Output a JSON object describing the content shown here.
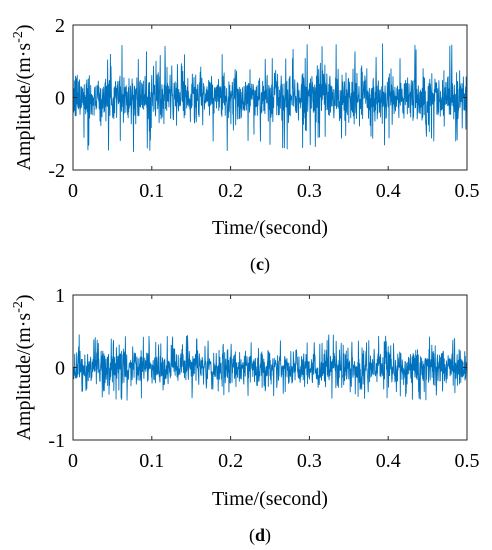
{
  "chart_data": [
    {
      "type": "line",
      "caption_letter": "c",
      "xlabel": "Time/(second)",
      "ylabel": "Amplitude/(m·s",
      "ylabel_sup": "-2",
      "ylabel_close": ")",
      "xlim": [
        0,
        0.5
      ],
      "ylim": [
        -2,
        2
      ],
      "xticks": [
        "0",
        "0.1",
        "0.2",
        "0.3",
        "0.4",
        "0.5"
      ],
      "yticks": [
        "-2",
        "0",
        "2"
      ],
      "grid": false,
      "series": [
        {
          "color": "#0072BD",
          "signal": {
            "duration": 0.5,
            "typical_amplitude": 0.65,
            "peak_amplitude": 1.5
          }
        }
      ]
    },
    {
      "type": "line",
      "caption_letter": "d",
      "xlabel": "Time/(second)",
      "ylabel": "Amplitude/(m·s",
      "ylabel_sup": "-2",
      "ylabel_close": ")",
      "xlim": [
        0,
        0.5
      ],
      "ylim": [
        -1,
        1
      ],
      "xticks": [
        "0",
        "0.1",
        "0.2",
        "0.3",
        "0.4",
        "0.5"
      ],
      "yticks": [
        "-1",
        "0",
        "1"
      ],
      "grid": false,
      "series": [
        {
          "color": "#0072BD",
          "signal": {
            "duration": 0.5,
            "typical_amplitude": 0.25,
            "peak_amplitude": 0.45
          }
        }
      ]
    }
  ]
}
